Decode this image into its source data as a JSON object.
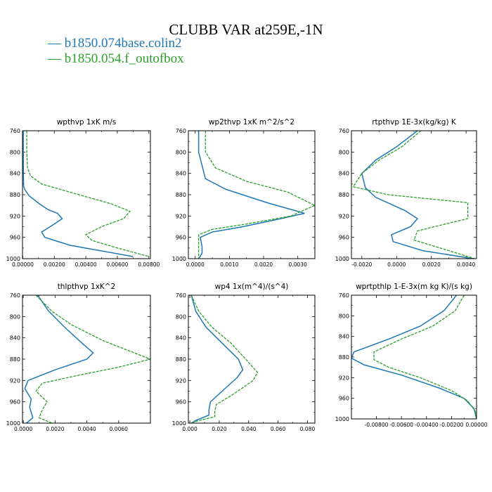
{
  "title": "CLUBB VAR at259E,-1N",
  "legend": [
    {
      "label": "b1850.074base.colin2",
      "color": "#1f77b4"
    },
    {
      "label": "b1850.054.f_outofbox",
      "color": "#2ca02c"
    }
  ],
  "chart_data": [
    {
      "type": "line",
      "title": "wpthvp   1xK m/s",
      "xlim": [
        -2e-05,
        0.0081
      ],
      "ylim": [
        760,
        1000
      ],
      "y_reversed": true,
      "xticks": [
        0,
        0.002,
        0.004,
        0.006,
        0.008
      ],
      "xtick_labels": [
        "0.00000",
        "0.00200",
        "0.00400",
        "0.00600",
        "0.00800"
      ],
      "yticks": [
        760,
        800,
        840,
        880,
        920,
        960,
        1000
      ],
      "series": [
        {
          "name": "b1850.074base.colin2",
          "color": "#1f77b4",
          "x": [
            3e-05,
            3e-05,
            4e-05,
            5e-05,
            0.00012,
            0.0004,
            0.001,
            0.0016,
            0.0022,
            0.0025,
            0.002,
            0.0012,
            0.0014,
            0.003,
            0.007
          ],
          "y": [
            760,
            800,
            840,
            864,
            870,
            882,
            896,
            908,
            915,
            925,
            935,
            950,
            960,
            975,
            996
          ]
        },
        {
          "name": "b1850.054.f_outofbox",
          "color": "#2ca02c",
          "x": [
            0.00025,
            0.00025,
            0.0003,
            0.0005,
            0.0012,
            0.0032,
            0.0056,
            0.0068,
            0.0064,
            0.005,
            0.004,
            0.0044,
            0.006,
            0.008
          ],
          "y": [
            760,
            800,
            830,
            845,
            860,
            877,
            897,
            911,
            925,
            940,
            955,
            966,
            980,
            996
          ]
        }
      ]
    },
    {
      "type": "line",
      "title": "wp2thvp   1xK m^2/s^2",
      "xlim": [
        -0.0002,
        0.0035
      ],
      "ylim": [
        760,
        1000
      ],
      "y_reversed": true,
      "xticks": [
        0,
        0.001,
        0.002,
        0.003
      ],
      "xtick_labels": [
        "0.0000",
        "0.0010",
        "0.0020",
        "0.0030"
      ],
      "yticks": [
        760,
        800,
        840,
        880,
        920,
        960,
        1000
      ],
      "series": [
        {
          "name": "b1850.074base.colin2",
          "color": "#1f77b4",
          "x": [
            0.0001,
            0.0001,
            0.0003,
            0.0009,
            0.0021,
            0.0032,
            0.0025,
            0.0014,
            0.0005,
            0.00015,
            0.0002,
            0.0002,
            0.0001
          ],
          "y": [
            760,
            800,
            850,
            870,
            895,
            915,
            925,
            940,
            950,
            960,
            978,
            990,
            1000
          ]
        },
        {
          "name": "b1850.054.f_outofbox",
          "color": "#2ca02c",
          "x": [
            0.0003,
            0.0003,
            0.0006,
            0.0015,
            0.0027,
            0.0035,
            0.0028,
            0.0015,
            0.0005,
            0.0001,
            0.0001,
            0.0001
          ],
          "y": [
            760,
            800,
            830,
            855,
            875,
            900,
            920,
            935,
            945,
            955,
            980,
            1000
          ]
        }
      ]
    },
    {
      "type": "line",
      "title": "rtpthvp   1E-3x(kg/kg) K",
      "xlim": [
        -0.0026,
        0.0046
      ],
      "ylim": [
        760,
        1000
      ],
      "y_reversed": true,
      "xticks": [
        -0.002,
        0,
        0.002,
        0.004
      ],
      "xtick_labels": [
        "-0.0020",
        "0.0000",
        "0.0020",
        "0.0040"
      ],
      "yticks": [
        760,
        800,
        840,
        880,
        920,
        960,
        1000
      ],
      "series": [
        {
          "name": "b1850.074base.colin2",
          "color": "#1f77b4",
          "x": [
            0.0012,
            0.0,
            -0.0012,
            -0.002,
            -0.0018,
            -0.0012,
            0.0005,
            0.0012,
            0.0008,
            -0.0003,
            -0.0002,
            0.0015,
            0.0044
          ],
          "y": [
            760,
            790,
            815,
            840,
            867,
            885,
            910,
            925,
            940,
            955,
            968,
            985,
            1000
          ]
        },
        {
          "name": "b1850.054.f_outofbox",
          "color": "#2ca02c",
          "x": [
            0.0014,
            0.0003,
            -0.001,
            -0.002,
            -0.0025,
            -0.0005,
            0.0041,
            0.0041,
            0.0028,
            0.0012,
            0.001,
            0.0025,
            0.0045
          ],
          "y": [
            760,
            790,
            815,
            840,
            865,
            880,
            895,
            925,
            935,
            948,
            965,
            980,
            1000
          ]
        }
      ]
    },
    {
      "type": "line",
      "title": "thlpthvp   1xK^2",
      "xlim": [
        -5e-05,
        0.008
      ],
      "ylim": [
        760,
        1000
      ],
      "y_reversed": true,
      "xticks": [
        0,
        0.002,
        0.004,
        0.006
      ],
      "xtick_labels": [
        "0.0000",
        "0.0020",
        "0.0040",
        "0.0060"
      ],
      "yticks": [
        760,
        800,
        840,
        880,
        920,
        960,
        1000
      ],
      "series": [
        {
          "name": "b1850.074base.colin2",
          "color": "#1f77b4",
          "x": [
            0.0009,
            0.0016,
            0.0026,
            0.0037,
            0.0044,
            0.004,
            0.002,
            0.0003,
            0.0001,
            0.0005,
            0.0004,
            0.0006,
            0.0002
          ],
          "y": [
            760,
            790,
            820,
            850,
            868,
            880,
            900,
            920,
            935,
            955,
            970,
            990,
            1000
          ]
        },
        {
          "name": "b1850.054.f_outofbox",
          "color": "#2ca02c",
          "x": [
            0.0008,
            0.0018,
            0.003,
            0.005,
            0.008,
            0.006,
            0.0035,
            0.0012,
            0.0008,
            0.0015,
            0.0012,
            0.001,
            0.0018
          ],
          "y": [
            760,
            790,
            815,
            845,
            880,
            895,
            910,
            925,
            940,
            960,
            975,
            990,
            1000
          ]
        }
      ]
    },
    {
      "type": "line",
      "title": "wp4   1x(m^4)/(s^4)",
      "xlim": [
        -0.001,
        0.085
      ],
      "ylim": [
        760,
        1000
      ],
      "y_reversed": true,
      "xticks": [
        0,
        0.02,
        0.04,
        0.06,
        0.08
      ],
      "xtick_labels": [
        "0.000",
        "0.020",
        "0.040",
        "0.060",
        "0.080"
      ],
      "yticks": [
        760,
        800,
        840,
        880,
        920,
        960,
        1000
      ],
      "series": [
        {
          "name": "b1850.074base.colin2",
          "color": "#1f77b4",
          "x": [
            0.001,
            0.004,
            0.011,
            0.022,
            0.033,
            0.036,
            0.032,
            0.022,
            0.014,
            0.013,
            0.013,
            0.004,
            0.001
          ],
          "y": [
            760,
            790,
            820,
            850,
            880,
            900,
            915,
            940,
            960,
            975,
            985,
            995,
            1000
          ]
        },
        {
          "name": "b1850.054.f_outofbox",
          "color": "#2ca02c",
          "x": [
            0.001,
            0.006,
            0.015,
            0.028,
            0.038,
            0.046,
            0.043,
            0.03,
            0.018,
            0.017,
            0.017,
            0.005,
            0.001
          ],
          "y": [
            760,
            790,
            820,
            850,
            880,
            905,
            920,
            945,
            965,
            978,
            988,
            996,
            1000
          ]
        }
      ]
    },
    {
      "type": "line",
      "title": "wprtpthlp   1-E-3x(m kg K)/(s kg)",
      "xlim": [
        -0.01,
        0.0
      ],
      "ylim": [
        760,
        1000
      ],
      "y_reversed": true,
      "xticks": [
        -0.008,
        -0.006,
        -0.004,
        -0.002,
        0
      ],
      "xtick_labels": [
        "-0.00800",
        "-0.00600",
        "-0.00400",
        "-0.00200",
        "0.00000"
      ],
      "yticks": [
        760,
        800,
        840,
        880,
        920,
        960,
        1000
      ],
      "series": [
        {
          "name": "b1850.074base.colin2",
          "color": "#1f77b4",
          "x": [
            -0.0016,
            -0.0026,
            -0.0045,
            -0.007,
            -0.0098,
            -0.01,
            -0.009,
            -0.006,
            -0.003,
            -0.001,
            -0.0002,
            0.0
          ],
          "y": [
            760,
            790,
            820,
            845,
            870,
            882,
            895,
            915,
            940,
            960,
            980,
            1000
          ]
        },
        {
          "name": "b1850.054.f_outofbox",
          "color": "#2ca02c",
          "x": [
            -0.001,
            -0.0017,
            -0.0035,
            -0.006,
            -0.0082,
            -0.0082,
            -0.007,
            -0.0045,
            -0.002,
            -0.0007,
            -0.0001,
            0.0
          ],
          "y": [
            760,
            790,
            820,
            845,
            870,
            885,
            900,
            920,
            945,
            965,
            985,
            1000
          ]
        }
      ]
    }
  ]
}
